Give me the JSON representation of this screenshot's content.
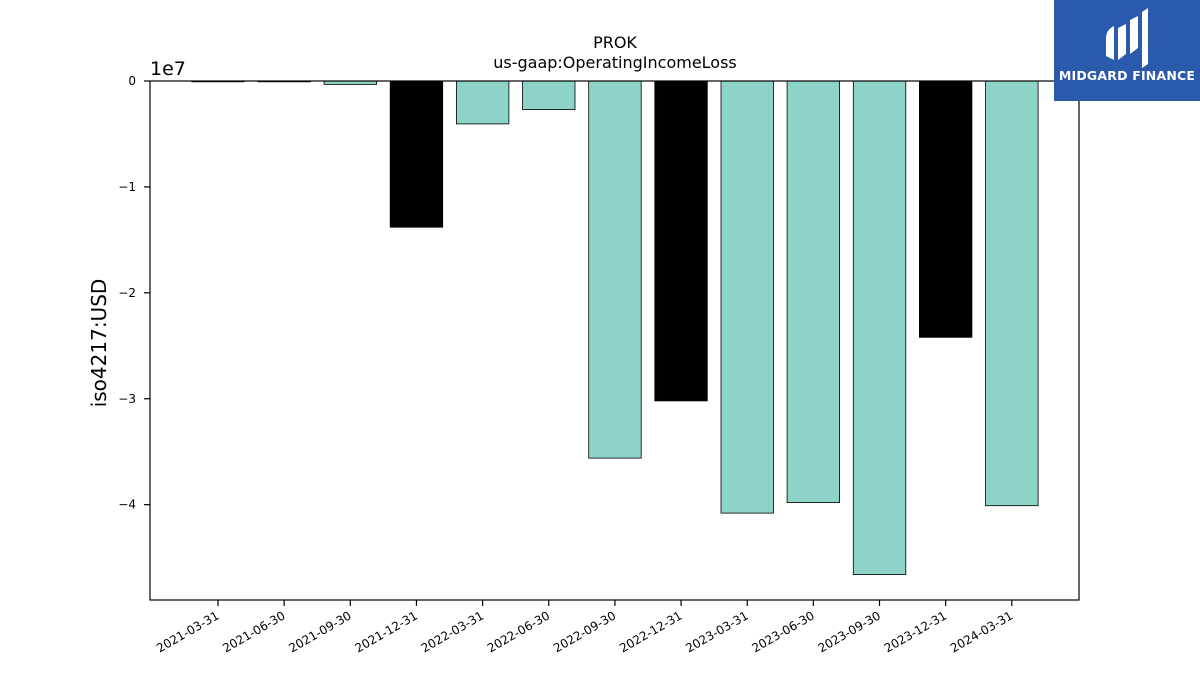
{
  "brand": {
    "name": "MIDGARD FINANCE",
    "color": "#2b5aad"
  },
  "chart_data": {
    "type": "bar",
    "title": "PROK",
    "subtitle": "us-gaap:OperatingIncomeLoss",
    "xlabel": "",
    "ylabel": "iso4217:USD",
    "offset_text": "1e7",
    "categories": [
      "2021-03-31",
      "2021-06-30",
      "2021-09-30",
      "2021-12-31",
      "2022-03-31",
      "2022-06-30",
      "2022-09-30",
      "2022-12-31",
      "2023-03-31",
      "2023-06-30",
      "2023-09-30",
      "2023-12-31",
      "2024-03-31"
    ],
    "values": [
      -40000,
      -60000,
      -320000,
      -13800000,
      -4050000,
      -2700000,
      -35600000,
      -30200000,
      -40800000,
      -39800000,
      -46600000,
      -24200000,
      -40100000
    ],
    "bar_colors": [
      "#8dd3c7",
      "#8dd3c7",
      "#8dd3c7",
      "#000000",
      "#8dd3c7",
      "#8dd3c7",
      "#8dd3c7",
      "#000000",
      "#8dd3c7",
      "#8dd3c7",
      "#8dd3c7",
      "#000000",
      "#8dd3c7"
    ],
    "ylim": [
      -49000000,
      0
    ],
    "yticks": [
      0,
      -10000000,
      -20000000,
      -30000000,
      -40000000
    ],
    "ytick_labels": [
      "0",
      "−1",
      "−2",
      "−3",
      "−4"
    ],
    "grid": false
  }
}
